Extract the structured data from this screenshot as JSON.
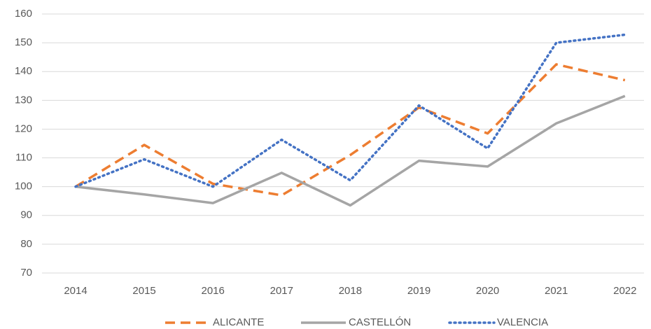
{
  "chart_data": {
    "type": "line",
    "categories": [
      "2014",
      "2015",
      "2016",
      "2017",
      "2018",
      "2019",
      "2020",
      "2021",
      "2022"
    ],
    "series": [
      {
        "name": "ALICANTE",
        "color": "#ed7d31",
        "dash": "dashed",
        "values": [
          100,
          114.5,
          101,
          97,
          111,
          127.5,
          118.5,
          142.5,
          137
        ]
      },
      {
        "name": "CASTELLÓN",
        "color": "#a5a5a5",
        "dash": "solid",
        "values": [
          100,
          97.3,
          94.3,
          104.8,
          93.5,
          109,
          107,
          122,
          131.5
        ]
      },
      {
        "name": "VALENCIA",
        "color": "#4472c4",
        "dash": "dotted",
        "values": [
          100,
          109.5,
          100,
          116.3,
          102.2,
          128.2,
          113.3,
          150,
          152.8
        ]
      }
    ],
    "ylim": [
      70,
      160
    ],
    "yticks": [
      70,
      80,
      90,
      100,
      110,
      120,
      130,
      140,
      150,
      160
    ],
    "grid": true,
    "legend": "bottom"
  }
}
